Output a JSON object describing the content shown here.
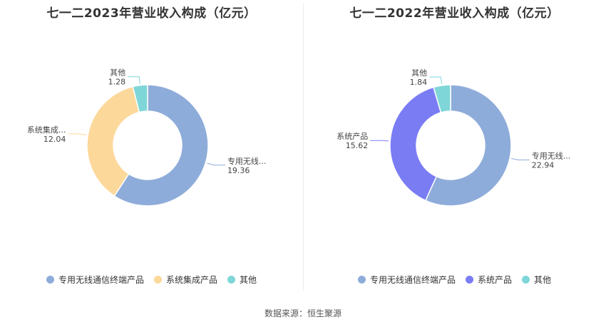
{
  "source_text": "数据来源：恒生聚源",
  "chart_data": [
    {
      "type": "pie",
      "title": "七一二2023年营业收入构成（亿元）",
      "series": [
        {
          "name": "专用无线通信终端产品",
          "short_label": "专用无线...",
          "value": 19.36,
          "display": "19.36",
          "color": "#8eacda"
        },
        {
          "name": "系统集成产品",
          "short_label": "系统集成...",
          "value": 12.04,
          "display": "12.04",
          "color": "#fcd89a"
        },
        {
          "name": "其他",
          "short_label": "其他",
          "value": 1.28,
          "display": "1.28",
          "color": "#7fd6d8"
        }
      ]
    },
    {
      "type": "pie",
      "title": "七一二2022年营业收入构成（亿元）",
      "series": [
        {
          "name": "专用无线通信终端产品",
          "short_label": "专用无线...",
          "value": 22.94,
          "display": "22.94",
          "color": "#8eacda"
        },
        {
          "name": "系统产品",
          "short_label": "系统产品",
          "value": 15.62,
          "display": "15.62",
          "color": "#7a7cf4"
        },
        {
          "name": "其他",
          "short_label": "其他",
          "value": 1.84,
          "display": "1.84",
          "color": "#7fd6d8"
        }
      ]
    }
  ]
}
